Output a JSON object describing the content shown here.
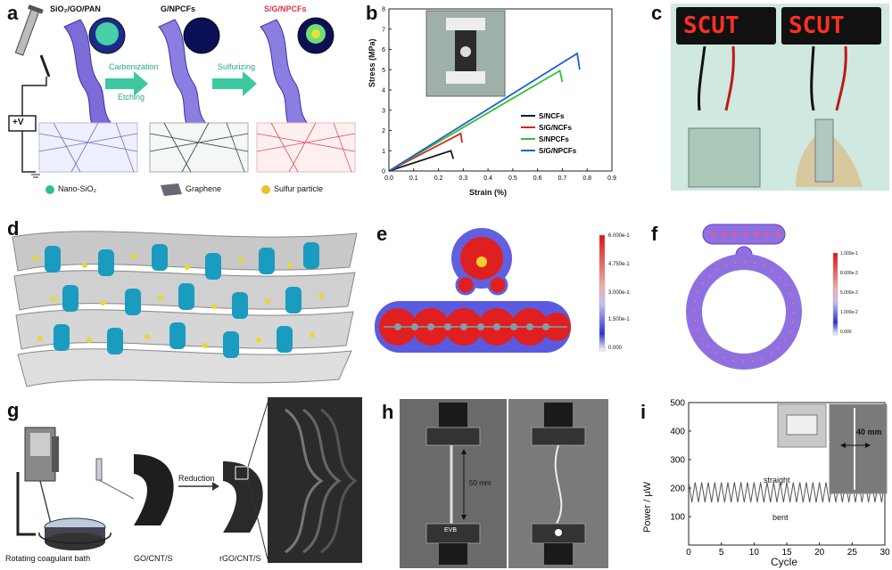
{
  "panels": {
    "a": {
      "label": "a",
      "stage_labels": [
        "SiO₂/GO/PAN",
        "G/NPCFs",
        "S/G/NPCFs"
      ],
      "step_labels": [
        "Carbonization",
        "Etching",
        "Sulfurizing"
      ],
      "voltage_label": "+V",
      "legend": [
        "Nano-SiO₂",
        "Graphene",
        "Sulfur particle"
      ]
    },
    "b": {
      "label": "b",
      "inset": "photo of fibre film in tensile test grips"
    },
    "c": {
      "label": "c",
      "sign_text": [
        "SCUT",
        "SCUT"
      ]
    },
    "d": {
      "label": "d"
    },
    "e": {
      "label": "e",
      "scale": [
        "6.000e-1",
        "4.750e-1",
        "3.000e-1",
        "1.500e-1",
        "0.000"
      ]
    },
    "f": {
      "label": "f",
      "scale": [
        "1.000e-1",
        "8.000e-2",
        "5.000e-2",
        "1.000e-2",
        "0.000"
      ]
    },
    "g": {
      "label": "g",
      "captions": [
        "Rotating coagulant bath",
        "GO/CNT/S",
        "rGO/CNT/S"
      ],
      "arrow_label": "Reduction"
    },
    "h": {
      "label": "h",
      "length_label": "50 mm",
      "led_text": "EVB"
    },
    "i": {
      "label": "i",
      "inset_label": "40 mm",
      "label_top": "straight",
      "label_bottom": "bent"
    }
  },
  "chart_data": [
    {
      "type": "line",
      "title": "",
      "xlabel": "Strain (%)",
      "ylabel": "Stress (MPa)",
      "xlim": [
        0.0,
        0.9
      ],
      "ylim": [
        0,
        8
      ],
      "xticks": [
        "0.0",
        "0.1",
        "0.2",
        "0.3",
        "0.4",
        "0.5",
        "0.6",
        "0.7",
        "0.8",
        "0.9"
      ],
      "yticks": [
        "0",
        "1",
        "2",
        "3",
        "4",
        "5",
        "6",
        "7",
        "8"
      ],
      "series": [
        {
          "name": "S/NCFs",
          "color": "#1a1a1a",
          "x": [
            0,
            0.25,
            0.26
          ],
          "y": [
            0,
            1.0,
            0.6
          ]
        },
        {
          "name": "S/G/NCFs",
          "color": "#e02020",
          "x": [
            0,
            0.29,
            0.295
          ],
          "y": [
            0,
            1.85,
            1.4
          ]
        },
        {
          "name": "S/NPCFs",
          "color": "#30c030",
          "x": [
            0,
            0.69,
            0.7
          ],
          "y": [
            0,
            4.95,
            4.4
          ]
        },
        {
          "name": "S/G/NPCFs",
          "color": "#2060d0",
          "x": [
            0,
            0.76,
            0.77
          ],
          "y": [
            0,
            5.8,
            5.0
          ]
        }
      ]
    },
    {
      "type": "line",
      "title": "",
      "xlabel": "Cycle",
      "ylabel": "Power / μW",
      "xlim": [
        0,
        30
      ],
      "ylim": [
        0,
        500
      ],
      "xticks": [
        "0",
        "5",
        "10",
        "15",
        "20",
        "25",
        "30"
      ],
      "yticks": [
        "100",
        "200",
        "300",
        "400",
        "500"
      ],
      "series": [
        {
          "name": "straight/bent oscillation",
          "color": "#555555",
          "cycles": 30,
          "high": 220,
          "low": 150
        }
      ]
    }
  ]
}
